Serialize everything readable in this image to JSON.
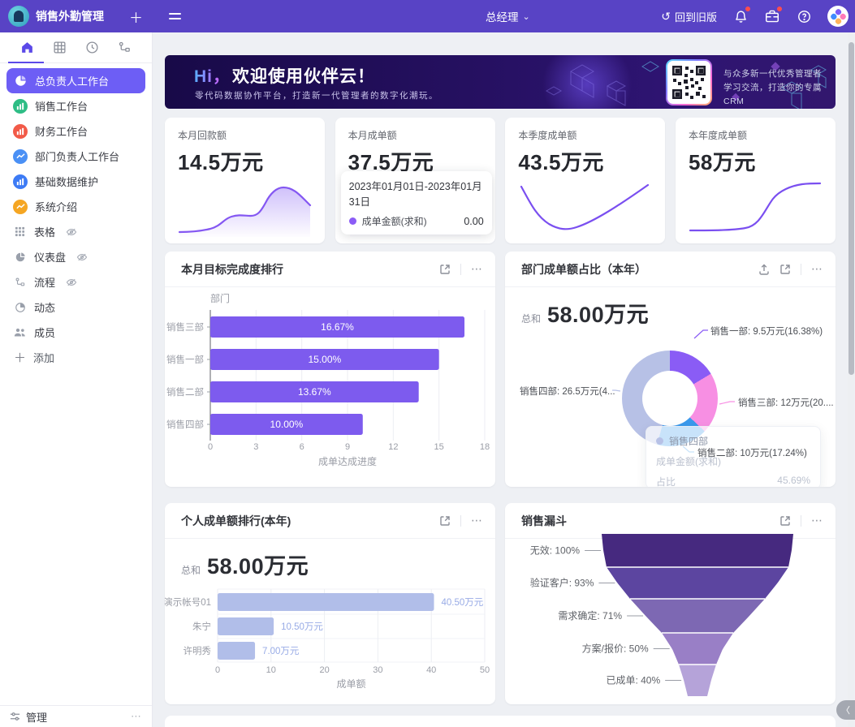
{
  "header": {
    "app_title": "销售外勤管理",
    "role": "总经理",
    "back_to_old": "回到旧版"
  },
  "icons": {
    "plus": "＋",
    "chevron_down": "⌄",
    "back_ring": "↺",
    "more": "⋯",
    "collapse": "〈",
    "add_plus": "＋"
  },
  "sidebar": {
    "tabs": [
      "home-icon",
      "table-icon",
      "clock-icon",
      "flow-icon"
    ],
    "workspaces": [
      {
        "label": "总负责人工作台",
        "active": true
      },
      {
        "label": "销售工作台"
      },
      {
        "label": "财务工作台"
      },
      {
        "label": "部门负责人工作台"
      },
      {
        "label": "基础数据维护"
      },
      {
        "label": "系统介绍"
      }
    ],
    "tools": [
      {
        "label": "表格",
        "hidden": true
      },
      {
        "label": "仪表盘",
        "hidden": true
      },
      {
        "label": "流程",
        "hidden": true
      },
      {
        "label": "动态",
        "hidden": false
      },
      {
        "label": "成员",
        "hidden": false
      }
    ],
    "add_label": "添加",
    "manage_label": "管理"
  },
  "banner": {
    "title_prefix": "Hi，",
    "title_rest": "欢迎使用伙伴云！",
    "subtitle": "零代码数据协作平台，打造新一代管理者的数字化潮玩。",
    "qr_caption_line1": "与众多新一代优秀管理者",
    "qr_caption_line2": "学习交流，打造你的专属CRM"
  },
  "stats": [
    {
      "label": "本月回款额",
      "value": "14.5万元"
    },
    {
      "label": "本月成单额",
      "value": "37.5万元",
      "tooltip": {
        "date_range": "2023年01月01日-2023年01月31日",
        "series": "成单金额(求和)",
        "value": "0.00"
      }
    },
    {
      "label": "本季度成单额",
      "value": "43.5万元"
    },
    {
      "label": "本年度成单额",
      "value": "58万元"
    }
  ],
  "cards": {
    "target_ranking": {
      "title": "本月目标完成度排行",
      "chart_data": {
        "type": "bar",
        "orientation": "horizontal",
        "y_title": "部门",
        "categories": [
          "销售三部",
          "销售一部",
          "销售二部",
          "销售四部"
        ],
        "values": [
          16.67,
          15.0,
          13.67,
          10.0
        ],
        "bar_labels": [
          "16.67%",
          "15.00%",
          "13.67%",
          "10.00%"
        ],
        "x_ticks": [
          0,
          3,
          6,
          9,
          12,
          15,
          18
        ],
        "xlim": [
          0,
          18
        ],
        "xlabel": "成单达成进度",
        "bar_color": "#7d5bee",
        "grid": true
      }
    },
    "dept_share": {
      "title": "部门成单额占比（本年）",
      "total_label": "总和",
      "total_value": "58.00万元",
      "chart_data": {
        "type": "pie",
        "slices": [
          {
            "name": "销售一部",
            "value": 9.5,
            "pct": 16.38,
            "label": "销售一部: 9.5万元(16.38%)",
            "color": "#8a5cf5"
          },
          {
            "name": "销售三部",
            "value": 12,
            "pct": 20.69,
            "label": "销售三部: 12万元(20....",
            "color": "#f78fe3"
          },
          {
            "name": "销售二部",
            "value": 10,
            "pct": 17.24,
            "label": "销售二部: 10万元(17.24%)",
            "color": "#3a99ec"
          },
          {
            "name": "销售四部",
            "value": 26.5,
            "pct": 45.69,
            "label": "销售四部: 26.5万元(4...",
            "color": "#b7c1e6"
          }
        ]
      },
      "tooltip": {
        "name": "销售四部",
        "row1_label": "成单金额(求和)",
        "row1_value": "",
        "row2_label": "占比",
        "row2_value": "45.69%"
      }
    },
    "personal_ranking": {
      "title": "个人成单额排行(本年)",
      "total_label": "总和",
      "total_value": "58.00万元",
      "chart_data": {
        "type": "bar",
        "orientation": "horizontal",
        "categories": [
          "演示帐号01",
          "朱宁",
          "许明秀"
        ],
        "values": [
          40.5,
          10.5,
          7.0
        ],
        "bar_labels": [
          "40.50万元",
          "10.50万元",
          "7.00万元"
        ],
        "x_ticks": [
          0,
          10,
          20,
          30,
          40,
          50
        ],
        "xlim": [
          0,
          50
        ],
        "xlabel": "成单额",
        "bar_color": "#b1bee9",
        "value_color": "#9badе8",
        "grid": true
      }
    },
    "funnel": {
      "title": "销售漏斗",
      "chart_data": {
        "type": "funnel",
        "stages": [
          {
            "label": "无效: 100%",
            "pct": 100,
            "color": "#46297f"
          },
          {
            "label": "验证客户: 93%",
            "pct": 93,
            "color": "#5c45a0"
          },
          {
            "label": "需求确定: 71%",
            "pct": 71,
            "color": "#7d68b3"
          },
          {
            "label": "方案/报价: 50%",
            "pct": 50,
            "color": "#997fc6"
          },
          {
            "label": "已成单: 40%",
            "pct": 40,
            "color": "#b5a3d9"
          }
        ]
      }
    }
  },
  "colors": {
    "topbar": "#5843c5",
    "active_menu": "#6d5ef5",
    "spark_purple": "#8457f2",
    "accent_purple": "#7d5bee"
  }
}
